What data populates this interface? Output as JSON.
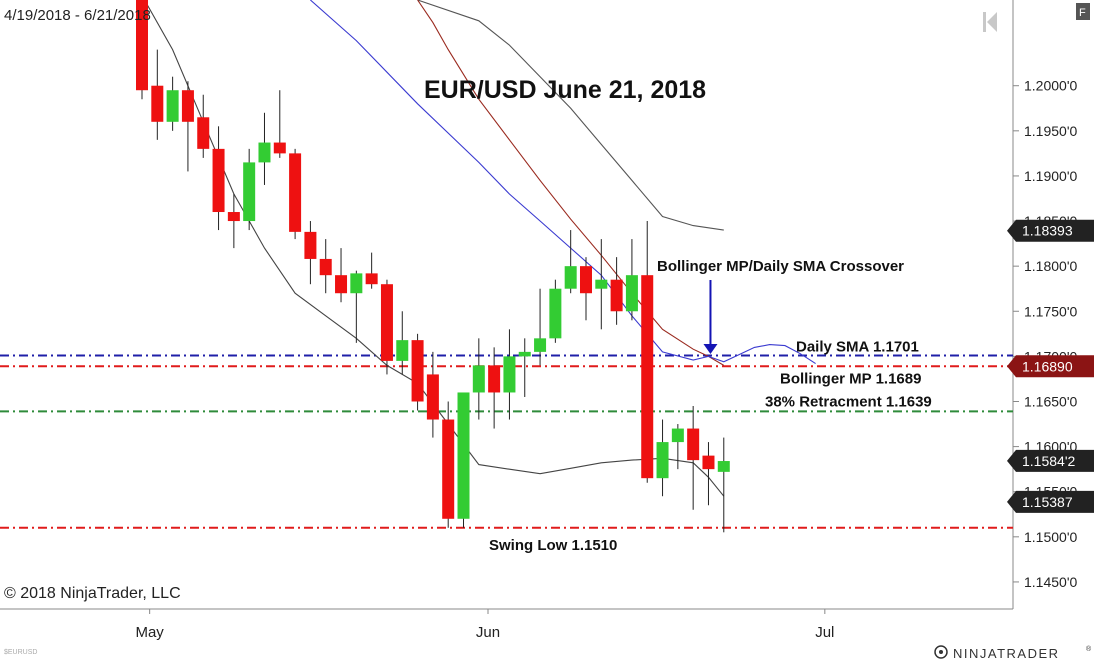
{
  "header": {
    "date_range": "4/19/2018 - 6/21/2018",
    "title": "EUR/USD June 21, 2018",
    "copyright": "© 2018 NinjaTrader, LLC",
    "symbol": "$EURUSD",
    "brand": "NINJATRADER",
    "brand_mark": "®",
    "corner_badge": "F"
  },
  "chart_data": {
    "type": "candlestick",
    "title": "EUR/USD June 21, 2018",
    "xlabel": "",
    "ylabel": "",
    "ylim": [
      1.142,
      1.2095
    ],
    "xlim": [
      0,
      63
    ],
    "grid": false,
    "y_ticks": [
      "1.2000'0",
      "1.1950'0",
      "1.1900'0",
      "1.1850'0",
      "1.1800'0",
      "1.1750'0",
      "1.1700'0",
      "1.1650'0",
      "1.1600'0",
      "1.1550'0",
      "1.1500'0",
      "1.1450'0"
    ],
    "y_tick_values": [
      1.2,
      1.195,
      1.19,
      1.185,
      1.18,
      1.175,
      1.17,
      1.165,
      1.16,
      1.155,
      1.15,
      1.145
    ],
    "x_ticks": [
      {
        "label": "May",
        "x": 0.5
      },
      {
        "label": "Jun",
        "x": 22.6
      },
      {
        "label": "Jul",
        "x": 44.6
      }
    ],
    "candles": [
      {
        "x": 0,
        "o": 1.21,
        "h": 1.215,
        "l": 1.1985,
        "c": 1.1995
      },
      {
        "x": 1,
        "o": 1.2,
        "h": 1.204,
        "l": 1.194,
        "c": 1.196
      },
      {
        "x": 2,
        "o": 1.196,
        "h": 1.201,
        "l": 1.195,
        "c": 1.1995
      },
      {
        "x": 3,
        "o": 1.1995,
        "h": 1.2005,
        "l": 1.1905,
        "c": 1.196
      },
      {
        "x": 4,
        "o": 1.1965,
        "h": 1.199,
        "l": 1.192,
        "c": 1.193
      },
      {
        "x": 5,
        "o": 1.193,
        "h": 1.1955,
        "l": 1.184,
        "c": 1.186
      },
      {
        "x": 6,
        "o": 1.186,
        "h": 1.188,
        "l": 1.182,
        "c": 1.185
      },
      {
        "x": 7,
        "o": 1.185,
        "h": 1.193,
        "l": 1.184,
        "c": 1.1915
      },
      {
        "x": 8,
        "o": 1.1915,
        "h": 1.197,
        "l": 1.189,
        "c": 1.1937
      },
      {
        "x": 9,
        "o": 1.1937,
        "h": 1.1995,
        "l": 1.192,
        "c": 1.1925
      },
      {
        "x": 10,
        "o": 1.1925,
        "h": 1.193,
        "l": 1.183,
        "c": 1.1838
      },
      {
        "x": 11,
        "o": 1.1838,
        "h": 1.185,
        "l": 1.178,
        "c": 1.1808
      },
      {
        "x": 12,
        "o": 1.1808,
        "h": 1.183,
        "l": 1.177,
        "c": 1.179
      },
      {
        "x": 13,
        "o": 1.179,
        "h": 1.182,
        "l": 1.176,
        "c": 1.177
      },
      {
        "x": 14,
        "o": 1.177,
        "h": 1.1795,
        "l": 1.1715,
        "c": 1.1792
      },
      {
        "x": 15,
        "o": 1.1792,
        "h": 1.1815,
        "l": 1.1775,
        "c": 1.178
      },
      {
        "x": 16,
        "o": 1.178,
        "h": 1.1785,
        "l": 1.168,
        "c": 1.1695
      },
      {
        "x": 17,
        "o": 1.1695,
        "h": 1.175,
        "l": 1.168,
        "c": 1.1718
      },
      {
        "x": 18,
        "o": 1.1718,
        "h": 1.1725,
        "l": 1.164,
        "c": 1.165
      },
      {
        "x": 19,
        "o": 1.168,
        "h": 1.1705,
        "l": 1.161,
        "c": 1.163
      },
      {
        "x": 20,
        "o": 1.163,
        "h": 1.165,
        "l": 1.151,
        "c": 1.152
      },
      {
        "x": 21,
        "o": 1.152,
        "h": 1.166,
        "l": 1.151,
        "c": 1.166
      },
      {
        "x": 22,
        "o": 1.166,
        "h": 1.172,
        "l": 1.163,
        "c": 1.169
      },
      {
        "x": 23,
        "o": 1.169,
        "h": 1.171,
        "l": 1.162,
        "c": 1.166
      },
      {
        "x": 24,
        "o": 1.166,
        "h": 1.173,
        "l": 1.163,
        "c": 1.17
      },
      {
        "x": 25,
        "o": 1.17,
        "h": 1.172,
        "l": 1.1655,
        "c": 1.1705
      },
      {
        "x": 26,
        "o": 1.1705,
        "h": 1.1775,
        "l": 1.169,
        "c": 1.172
      },
      {
        "x": 27,
        "o": 1.172,
        "h": 1.1785,
        "l": 1.1715,
        "c": 1.1775
      },
      {
        "x": 28,
        "o": 1.1775,
        "h": 1.184,
        "l": 1.177,
        "c": 1.18
      },
      {
        "x": 29,
        "o": 1.18,
        "h": 1.181,
        "l": 1.174,
        "c": 1.177
      },
      {
        "x": 30,
        "o": 1.1775,
        "h": 1.183,
        "l": 1.173,
        "c": 1.1785
      },
      {
        "x": 31,
        "o": 1.1785,
        "h": 1.181,
        "l": 1.1735,
        "c": 1.175
      },
      {
        "x": 32,
        "o": 1.175,
        "h": 1.183,
        "l": 1.174,
        "c": 1.179
      },
      {
        "x": 33,
        "o": 1.179,
        "h": 1.185,
        "l": 1.156,
        "c": 1.1565
      },
      {
        "x": 34,
        "o": 1.1565,
        "h": 1.163,
        "l": 1.1545,
        "c": 1.1605
      },
      {
        "x": 35,
        "o": 1.1605,
        "h": 1.1625,
        "l": 1.1575,
        "c": 1.162
      },
      {
        "x": 36,
        "o": 1.162,
        "h": 1.1645,
        "l": 1.153,
        "c": 1.1585
      },
      {
        "x": 37,
        "o": 1.159,
        "h": 1.1605,
        "l": 1.1535,
        "c": 1.1575
      },
      {
        "x": 38,
        "o": 1.1572,
        "h": 1.161,
        "l": 1.1505,
        "c": 1.1584
      }
    ],
    "lines": [
      {
        "name": "bollinger-upper",
        "color": "#555555",
        "points": [
          [
            18,
            1.2095
          ],
          [
            22,
            1.2072
          ],
          [
            24,
            1.2045
          ],
          [
            26,
            1.201
          ],
          [
            28,
            1.1975
          ],
          [
            30,
            1.1935
          ],
          [
            32,
            1.1895
          ],
          [
            34,
            1.1855
          ],
          [
            36,
            1.1845
          ],
          [
            38,
            1.184
          ]
        ]
      },
      {
        "name": "bollinger-midpoint",
        "color": "#9a2a1f",
        "points": [
          [
            18,
            1.2095
          ],
          [
            19,
            1.207
          ],
          [
            20,
            1.204
          ],
          [
            22,
            1.1985
          ],
          [
            24,
            1.194
          ],
          [
            26,
            1.1895
          ],
          [
            28,
            1.1852
          ],
          [
            30,
            1.1812
          ],
          [
            32,
            1.177
          ],
          [
            34,
            1.173
          ],
          [
            36,
            1.1708
          ],
          [
            37,
            1.17
          ],
          [
            38,
            1.169
          ]
        ]
      },
      {
        "name": "daily-sma",
        "color": "#3a3ad0",
        "points": [
          [
            11,
            1.2095
          ],
          [
            14,
            1.205
          ],
          [
            18,
            1.198
          ],
          [
            22,
            1.1915
          ],
          [
            24,
            1.188
          ],
          [
            26,
            1.185
          ],
          [
            28,
            1.182
          ],
          [
            30,
            1.179
          ],
          [
            32,
            1.1745
          ],
          [
            34,
            1.1705
          ],
          [
            36,
            1.1696
          ],
          [
            37,
            1.17
          ],
          [
            38,
            1.1694
          ],
          [
            39,
            1.1702
          ],
          [
            40,
            1.171
          ],
          [
            41,
            1.1713
          ],
          [
            42,
            1.1712
          ],
          [
            43,
            1.1703
          ],
          [
            44,
            1.1692
          ]
        ]
      },
      {
        "name": "bollinger-lower",
        "color": "#444444",
        "points": [
          [
            0,
            1.21
          ],
          [
            2,
            1.204
          ],
          [
            4,
            1.196
          ],
          [
            6,
            1.188
          ],
          [
            8,
            1.182
          ],
          [
            10,
            1.177
          ],
          [
            12,
            1.1745
          ],
          [
            14,
            1.172
          ],
          [
            16,
            1.169
          ],
          [
            18,
            1.167
          ],
          [
            20,
            1.1625
          ],
          [
            22,
            1.158
          ],
          [
            24,
            1.1575
          ],
          [
            26,
            1.157
          ],
          [
            28,
            1.1576
          ],
          [
            30,
            1.1582
          ],
          [
            32,
            1.1585
          ],
          [
            34,
            1.1587
          ],
          [
            36,
            1.1582
          ],
          [
            37,
            1.1566
          ],
          [
            38,
            1.1545
          ]
        ]
      }
    ],
    "levels": [
      {
        "name": "daily-sma-level",
        "value": 1.1701,
        "color": "#1f1fa8",
        "label": "Daily SMA 1.1701"
      },
      {
        "name": "bollinger-mp-level",
        "value": 1.1689,
        "color": "#e01b1b",
        "label": "Bollinger MP 1.1689"
      },
      {
        "name": "retracement-level",
        "value": 1.1639,
        "color": "#2e8b3a",
        "label": "38% Retracment 1.1639"
      },
      {
        "name": "swing-low-level",
        "value": 1.151,
        "color": "#e01b1b",
        "label": "Swing Low 1.1510"
      }
    ],
    "price_tags": [
      {
        "name": "tag-1-18393",
        "value": 1.18393,
        "text": "1.18393",
        "bg": "#222222"
      },
      {
        "name": "tag-1-16890",
        "value": 1.1689,
        "text": "1.16890",
        "bg": "#8b1414"
      },
      {
        "name": "tag-1-1584-2",
        "value": 1.15842,
        "text": "1.1584'2",
        "bg": "#222222"
      },
      {
        "name": "tag-1-15387",
        "value": 1.15387,
        "text": "1.15387",
        "bg": "#222222"
      }
    ],
    "annotations": [
      {
        "name": "crossover-annotation",
        "text": "Bollinger MP/Daily SMA Crossover",
        "arrow_x": 37,
        "arrow_to": 1.1696
      }
    ],
    "colors": {
      "up": "#33cc33",
      "down": "#ee1111",
      "wick": "#222222"
    }
  }
}
